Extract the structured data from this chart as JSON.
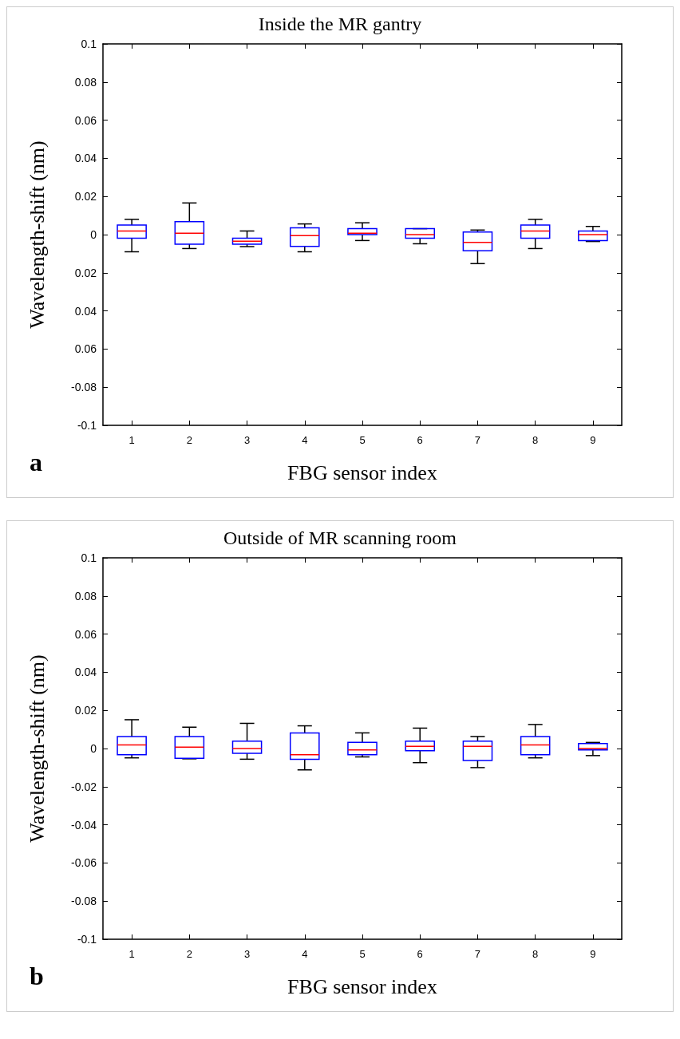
{
  "chart_data": [
    {
      "type": "box",
      "title": "Inside the MR gantry",
      "xlabel": "FBG sensor index",
      "ylabel": "Wavelength-shift (nm)",
      "annotations": [
        "a"
      ],
      "categories": [
        "1",
        "2",
        "3",
        "4",
        "5",
        "6",
        "7",
        "8",
        "9"
      ],
      "ylim": [
        -0.1,
        0.1
      ],
      "yticks": [
        {
          "value": -0.1,
          "label": "-0.1"
        },
        -0.08,
        {
          "value": -0.06,
          "label": "0.06"
        },
        {
          "value": -0.04,
          "label": "0.04"
        },
        {
          "value": -0.02,
          "label": "0.02"
        },
        0,
        0.02,
        0.04,
        0.06,
        0.08,
        0.1
      ],
      "grid": false,
      "series": [
        {
          "color": "#0000ff",
          "boxes": [
            {
              "low": -0.009,
              "q1": -0.0019,
              "median": 0.0019,
              "q3": 0.005,
              "high": 0.008
            },
            {
              "low": -0.0073,
              "q1": -0.005,
              "median": 0.0007,
              "q3": 0.0068,
              "high": 0.0166
            },
            {
              "low": -0.0063,
              "q1": -0.005,
              "median": -0.0034,
              "q3": -0.0019,
              "high": 0.0019
            },
            {
              "low": -0.009,
              "q1": -0.0062,
              "median": -0.0005,
              "q3": 0.0036,
              "high": 0.0056
            },
            {
              "low": -0.0031,
              "q1": 0,
              "median": 0.0007,
              "q3": 0.0031,
              "high": 0.0062
            },
            {
              "low": -0.0048,
              "q1": -0.0019,
              "median": 0,
              "q3": 0.0031,
              "high": 0.0031
            },
            {
              "low": -0.0152,
              "q1": -0.0085,
              "median": -0.0041,
              "q3": 0.0014,
              "high": 0.0024
            },
            {
              "low": -0.0073,
              "q1": -0.0019,
              "median": 0.0019,
              "q3": 0.005,
              "high": 0.008
            },
            {
              "low": -0.0036,
              "q1": -0.0031,
              "median": 0,
              "q3": 0.0019,
              "high": 0.0043
            }
          ]
        }
      ]
    },
    {
      "type": "box",
      "title": "Outside of MR scanning room",
      "xlabel": "FBG sensor index",
      "ylabel": "Wavelength-shift (nm)",
      "annotations": [
        "b"
      ],
      "categories": [
        "1",
        "2",
        "3",
        "4",
        "5",
        "6",
        "7",
        "8",
        "9"
      ],
      "ylim": [
        -0.1,
        0.1
      ],
      "yticks": [
        -0.1,
        -0.08,
        -0.06,
        -0.04,
        -0.02,
        0,
        0.02,
        0.04,
        0.06,
        0.08,
        0.1
      ],
      "grid": false,
      "series": [
        {
          "color": "#0000ff",
          "boxes": [
            {
              "low": -0.0049,
              "q1": -0.0032,
              "median": 0.0019,
              "q3": 0.0063,
              "high": 0.0151
            },
            {
              "low": -0.0054,
              "q1": -0.0051,
              "median": 0.0007,
              "q3": 0.0063,
              "high": 0.0112
            },
            {
              "low": -0.0056,
              "q1": -0.0025,
              "median": 0,
              "q3": 0.0039,
              "high": 0.0132
            },
            {
              "low": -0.0112,
              "q1": -0.0056,
              "median": -0.0032,
              "q3": 0.0082,
              "high": 0.0119
            },
            {
              "low": -0.0044,
              "q1": -0.0032,
              "median": -0.0007,
              "q3": 0.0032,
              "high": 0.0082
            },
            {
              "low": -0.0074,
              "q1": -0.0012,
              "median": 0.0012,
              "q3": 0.0039,
              "high": 0.0107
            },
            {
              "low": -0.01,
              "q1": -0.0063,
              "median": 0.0012,
              "q3": 0.0039,
              "high": 0.0063
            },
            {
              "low": -0.0049,
              "q1": -0.0032,
              "median": 0.0019,
              "q3": 0.0063,
              "high": 0.0126
            },
            {
              "low": -0.0037,
              "q1": -0.0007,
              "median": 0,
              "q3": 0.0026,
              "high": 0.0032
            }
          ]
        }
      ]
    }
  ]
}
